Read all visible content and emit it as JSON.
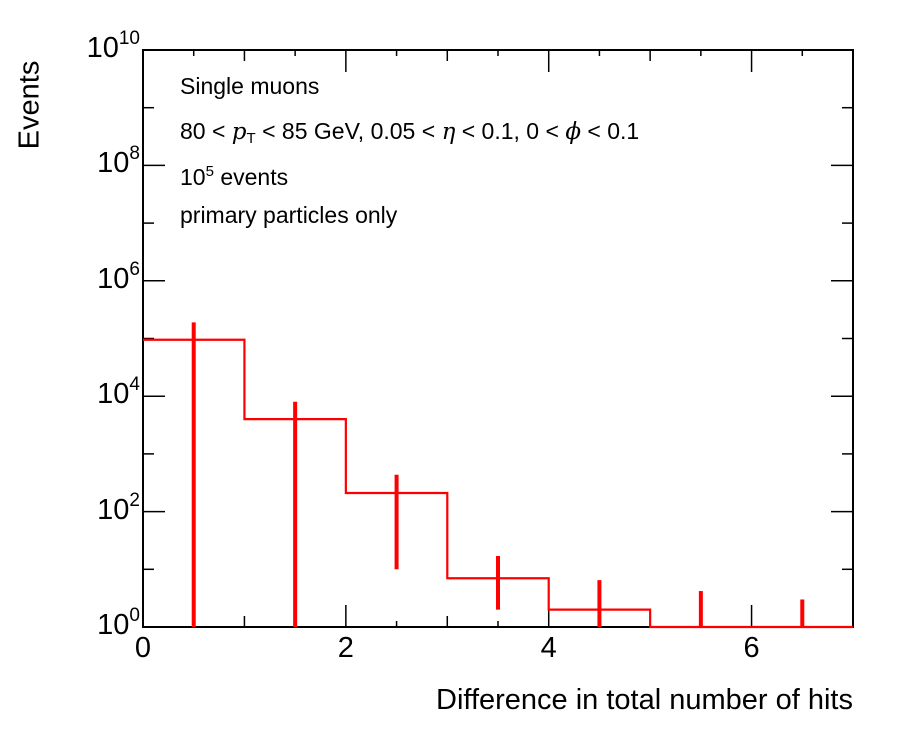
{
  "chart_data": {
    "type": "histogram",
    "title": "",
    "xlabel": "Difference in total number of hits",
    "ylabel": "Events",
    "xlim": [
      0,
      7
    ],
    "ylim": [
      1,
      10000000000
    ],
    "yscale": "log",
    "xticks": [
      "0",
      "2",
      "4",
      "6"
    ],
    "xtick_values": [
      0,
      2,
      4,
      6
    ],
    "yticks": [
      {
        "base": "10",
        "exp": "0",
        "value": 1
      },
      {
        "base": "10",
        "exp": "2",
        "value": 100
      },
      {
        "base": "10",
        "exp": "4",
        "value": 10000
      },
      {
        "base": "10",
        "exp": "6",
        "value": 1000000
      },
      {
        "base": "10",
        "exp": "8",
        "value": 100000000
      },
      {
        "base": "10",
        "exp": "10",
        "value": 10000000000
      }
    ],
    "color": "#ff0000",
    "series": [
      {
        "name": "primary particles only",
        "bins": [
          {
            "x_low": 0,
            "x_high": 1,
            "value": 95000,
            "err_low": 95000,
            "err_high": 95000
          },
          {
            "x_low": 1,
            "x_high": 2,
            "value": 4000,
            "err_low": 4000,
            "err_high": 4000
          },
          {
            "x_low": 2,
            "x_high": 3,
            "value": 210,
            "err_low": 200,
            "err_high": 225
          },
          {
            "x_low": 3,
            "x_high": 4,
            "value": 7,
            "err_low": 5,
            "err_high": 10
          },
          {
            "x_low": 4,
            "x_high": 5,
            "value": 2,
            "err_low": 1,
            "err_high": 4.5
          },
          {
            "x_low": 5,
            "x_high": 6,
            "value": 1,
            "err_low": 1,
            "err_high": 3.2
          },
          {
            "x_low": 6,
            "x_high": 7,
            "value": 1,
            "err_low": 1,
            "err_high": 2
          }
        ]
      }
    ],
    "legend": {
      "line1": "Single muons",
      "line2_a": "80 < ",
      "line2_p": "p",
      "line2_sub": "T",
      "line2_b": " < 85 GeV, 0.05 < ",
      "line2_eta": "η",
      "line2_c": " < 0.1, 0 < ",
      "line2_phi": "ϕ",
      "line2_d": " < 0.1",
      "line3_a": "10",
      "line3_exp": "5",
      "line3_b": " events",
      "line4": "primary particles only"
    }
  }
}
